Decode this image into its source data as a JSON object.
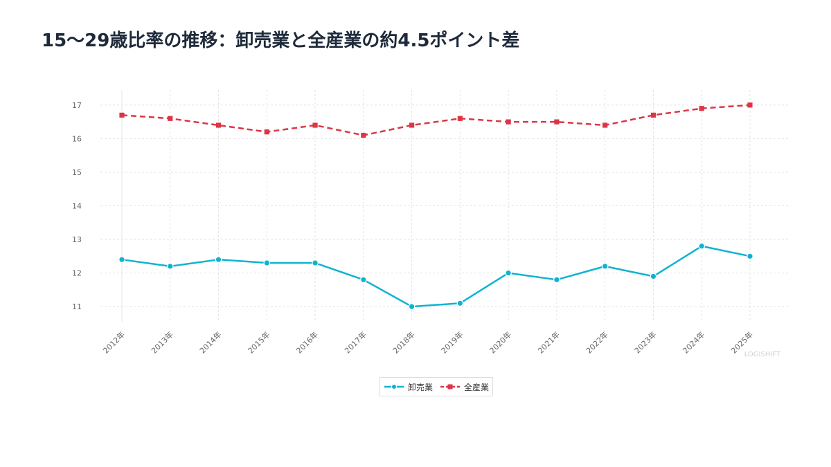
{
  "chart_data": {
    "type": "line",
    "title": "15〜29歳比率の推移：卸売業と全産業の約4.5ポイント差",
    "categories": [
      "2012年",
      "2013年",
      "2014年",
      "2015年",
      "2016年",
      "2017年",
      "2018年",
      "2019年",
      "2020年",
      "2021年",
      "2022年",
      "2023年",
      "2024年",
      "2025年"
    ],
    "series": [
      {
        "name": "卸売業",
        "color": "#0fb3d1",
        "marker": "circle",
        "dash": "solid",
        "values": [
          12.4,
          12.2,
          12.4,
          12.3,
          12.3,
          11.8,
          11.0,
          11.1,
          12.0,
          11.8,
          12.2,
          11.9,
          12.8,
          12.5
        ]
      },
      {
        "name": "全産業",
        "color": "#dc3545",
        "marker": "square",
        "dash": "dashed",
        "values": [
          16.7,
          16.6,
          16.4,
          16.2,
          16.4,
          16.1,
          16.4,
          16.6,
          16.5,
          16.5,
          16.4,
          16.7,
          16.9,
          17.0
        ]
      }
    ],
    "yticks": [
      11,
      12,
      13,
      14,
      15,
      16,
      17
    ],
    "ylim": [
      10.55,
      17.45
    ],
    "grid": true,
    "legend_position": "bottom-center",
    "watermark": "LOGISHIFT"
  }
}
